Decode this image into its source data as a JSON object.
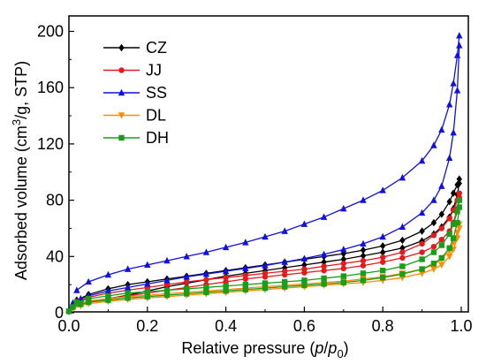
{
  "chart_data": {
    "type": "line",
    "xlabel": {
      "prefix": "Relative pressure (",
      "var1": "p",
      "slash": "/",
      "var2": "p",
      "sub": "0",
      "suffix": ")"
    },
    "ylabel": {
      "prefix": "Adsorbed volume (cm",
      "sup": "3",
      "suffix": "/g, STP)"
    },
    "xlim": [
      0.0,
      1.0
    ],
    "ylim": [
      0,
      210
    ],
    "xticks": [
      0.0,
      0.2,
      0.4,
      0.6,
      0.8,
      1.0
    ],
    "xtick_labels": [
      "0.0",
      "0.2",
      "0.4",
      "0.6",
      "0.8",
      "1.0"
    ],
    "yticks": [
      0,
      40,
      80,
      120,
      160,
      200
    ],
    "ytick_labels": [
      "0",
      "40",
      "80",
      "120",
      "160",
      "200"
    ],
    "grid": false,
    "legend_position": "top-left",
    "series": [
      {
        "name": "CZ",
        "color": "#000000",
        "marker": "diamond",
        "adsorption": [
          [
            0.0,
            1
          ],
          [
            0.01,
            4
          ],
          [
            0.03,
            6
          ],
          [
            0.05,
            7.5
          ],
          [
            0.1,
            10
          ],
          [
            0.15,
            12.5
          ],
          [
            0.2,
            15.5
          ],
          [
            0.25,
            18.5
          ],
          [
            0.3,
            21
          ],
          [
            0.35,
            23.5
          ],
          [
            0.4,
            26
          ],
          [
            0.45,
            28
          ],
          [
            0.5,
            30
          ],
          [
            0.55,
            32
          ],
          [
            0.6,
            34
          ],
          [
            0.65,
            36
          ],
          [
            0.7,
            38
          ],
          [
            0.75,
            40.5
          ],
          [
            0.8,
            43
          ],
          [
            0.85,
            46
          ],
          [
            0.9,
            51
          ],
          [
            0.93,
            56
          ],
          [
            0.95,
            61
          ],
          [
            0.97,
            68
          ],
          [
            0.98,
            74
          ],
          [
            0.99,
            84
          ],
          [
            0.995,
            92
          ]
        ],
        "desorption": [
          [
            0.995,
            95
          ],
          [
            0.99,
            91
          ],
          [
            0.98,
            85
          ],
          [
            0.97,
            79
          ],
          [
            0.95,
            70
          ],
          [
            0.93,
            64
          ],
          [
            0.9,
            58
          ],
          [
            0.85,
            51.5
          ],
          [
            0.8,
            47.5
          ],
          [
            0.75,
            44.5
          ],
          [
            0.7,
            42
          ],
          [
            0.65,
            40
          ],
          [
            0.6,
            38
          ],
          [
            0.55,
            36
          ],
          [
            0.5,
            34
          ],
          [
            0.45,
            32
          ],
          [
            0.4,
            30
          ],
          [
            0.35,
            28
          ],
          [
            0.3,
            26
          ],
          [
            0.25,
            24
          ],
          [
            0.2,
            22
          ],
          [
            0.15,
            20
          ],
          [
            0.1,
            17
          ],
          [
            0.05,
            13
          ],
          [
            0.02,
            9
          ]
        ]
      },
      {
        "name": "JJ",
        "color": "#e41a1c",
        "marker": "circle",
        "adsorption": [
          [
            0.0,
            1
          ],
          [
            0.01,
            4
          ],
          [
            0.03,
            6
          ],
          [
            0.05,
            7.5
          ],
          [
            0.1,
            10
          ],
          [
            0.15,
            12
          ],
          [
            0.2,
            14
          ],
          [
            0.25,
            16
          ],
          [
            0.3,
            18
          ],
          [
            0.35,
            20
          ],
          [
            0.4,
            22
          ],
          [
            0.45,
            24
          ],
          [
            0.5,
            25.5
          ],
          [
            0.55,
            27
          ],
          [
            0.6,
            28.5
          ],
          [
            0.65,
            30
          ],
          [
            0.7,
            31.5
          ],
          [
            0.75,
            33.5
          ],
          [
            0.8,
            36
          ],
          [
            0.85,
            39
          ],
          [
            0.9,
            43
          ],
          [
            0.93,
            47
          ],
          [
            0.95,
            52
          ],
          [
            0.97,
            58
          ],
          [
            0.98,
            64
          ],
          [
            0.99,
            74
          ],
          [
            0.995,
            82
          ]
        ],
        "desorption": [
          [
            0.995,
            85
          ],
          [
            0.99,
            80
          ],
          [
            0.98,
            73
          ],
          [
            0.97,
            67
          ],
          [
            0.95,
            60
          ],
          [
            0.93,
            55
          ],
          [
            0.9,
            49
          ],
          [
            0.85,
            43
          ],
          [
            0.8,
            39.5
          ],
          [
            0.75,
            37
          ],
          [
            0.7,
            35
          ],
          [
            0.65,
            33
          ],
          [
            0.6,
            31
          ],
          [
            0.55,
            29.5
          ],
          [
            0.5,
            28
          ],
          [
            0.45,
            26.5
          ],
          [
            0.4,
            25
          ],
          [
            0.35,
            23.5
          ],
          [
            0.3,
            22
          ],
          [
            0.25,
            20
          ],
          [
            0.2,
            18
          ],
          [
            0.15,
            16
          ],
          [
            0.1,
            14
          ],
          [
            0.05,
            11
          ],
          [
            0.02,
            8
          ]
        ]
      },
      {
        "name": "SS",
        "color": "#1010e0",
        "marker": "triangle-up",
        "adsorption": [
          [
            0.0,
            2
          ],
          [
            0.01,
            7
          ],
          [
            0.03,
            10
          ],
          [
            0.05,
            12
          ],
          [
            0.1,
            15.5
          ],
          [
            0.15,
            18
          ],
          [
            0.2,
            20.5
          ],
          [
            0.25,
            23
          ],
          [
            0.3,
            25.5
          ],
          [
            0.35,
            27.5
          ],
          [
            0.4,
            29.5
          ],
          [
            0.45,
            31.5
          ],
          [
            0.5,
            33.5
          ],
          [
            0.55,
            36
          ],
          [
            0.6,
            38.5
          ],
          [
            0.65,
            41.5
          ],
          [
            0.7,
            45
          ],
          [
            0.75,
            49
          ],
          [
            0.8,
            54
          ],
          [
            0.85,
            61
          ],
          [
            0.9,
            71
          ],
          [
            0.93,
            80
          ],
          [
            0.95,
            90
          ],
          [
            0.97,
            110
          ],
          [
            0.98,
            128
          ],
          [
            0.99,
            158
          ],
          [
            0.995,
            190
          ]
        ],
        "desorption": [
          [
            0.995,
            197
          ],
          [
            0.99,
            183
          ],
          [
            0.98,
            163
          ],
          [
            0.97,
            148
          ],
          [
            0.95,
            130
          ],
          [
            0.93,
            119
          ],
          [
            0.9,
            108
          ],
          [
            0.85,
            96
          ],
          [
            0.8,
            87
          ],
          [
            0.75,
            80
          ],
          [
            0.7,
            74
          ],
          [
            0.65,
            68
          ],
          [
            0.6,
            63
          ],
          [
            0.55,
            58
          ],
          [
            0.5,
            54
          ],
          [
            0.45,
            50
          ],
          [
            0.4,
            46.5
          ],
          [
            0.35,
            43
          ],
          [
            0.3,
            40
          ],
          [
            0.25,
            37
          ],
          [
            0.2,
            34
          ],
          [
            0.15,
            31
          ],
          [
            0.1,
            27
          ],
          [
            0.05,
            22
          ],
          [
            0.02,
            16
          ]
        ]
      },
      {
        "name": "DL",
        "color": "#ff8c00",
        "marker": "triangle-down",
        "adsorption": [
          [
            0.0,
            1
          ],
          [
            0.01,
            3
          ],
          [
            0.03,
            5
          ],
          [
            0.05,
            6.5
          ],
          [
            0.1,
            8
          ],
          [
            0.15,
            9.5
          ],
          [
            0.2,
            10.5
          ],
          [
            0.25,
            11.5
          ],
          [
            0.3,
            12.5
          ],
          [
            0.35,
            13.5
          ],
          [
            0.4,
            14.5
          ],
          [
            0.45,
            15.5
          ],
          [
            0.5,
            16.5
          ],
          [
            0.55,
            17.5
          ],
          [
            0.6,
            18.5
          ],
          [
            0.65,
            19.5
          ],
          [
            0.7,
            20.5
          ],
          [
            0.75,
            21.5
          ],
          [
            0.8,
            23
          ],
          [
            0.85,
            25
          ],
          [
            0.9,
            28
          ],
          [
            0.93,
            31
          ],
          [
            0.95,
            34
          ],
          [
            0.97,
            40
          ],
          [
            0.98,
            45
          ],
          [
            0.99,
            53
          ],
          [
            0.995,
            60
          ]
        ],
        "desorption": [
          [
            0.995,
            63
          ],
          [
            0.99,
            57
          ],
          [
            0.98,
            50
          ],
          [
            0.97,
            44
          ],
          [
            0.95,
            38
          ],
          [
            0.93,
            34
          ],
          [
            0.9,
            31
          ],
          [
            0.85,
            28
          ],
          [
            0.8,
            25.5
          ],
          [
            0.75,
            24
          ],
          [
            0.7,
            22.5
          ],
          [
            0.65,
            21.5
          ],
          [
            0.6,
            20.5
          ],
          [
            0.55,
            19.5
          ],
          [
            0.5,
            18.5
          ],
          [
            0.45,
            17.5
          ],
          [
            0.4,
            16.5
          ],
          [
            0.35,
            15.5
          ],
          [
            0.3,
            14.5
          ],
          [
            0.25,
            13.5
          ],
          [
            0.2,
            12.5
          ],
          [
            0.15,
            11.5
          ],
          [
            0.1,
            10
          ],
          [
            0.05,
            8.5
          ],
          [
            0.02,
            6.5
          ]
        ]
      },
      {
        "name": "DH",
        "color": "#1a9e1a",
        "marker": "square",
        "adsorption": [
          [
            0.0,
            1
          ],
          [
            0.01,
            4
          ],
          [
            0.03,
            6
          ],
          [
            0.05,
            7.5
          ],
          [
            0.1,
            9
          ],
          [
            0.15,
            10.5
          ],
          [
            0.2,
            11.5
          ],
          [
            0.25,
            12.5
          ],
          [
            0.3,
            13.5
          ],
          [
            0.35,
            14.5
          ],
          [
            0.4,
            15.5
          ],
          [
            0.45,
            16.5
          ],
          [
            0.5,
            17.5
          ],
          [
            0.55,
            18.5
          ],
          [
            0.6,
            19.5
          ],
          [
            0.65,
            20.5
          ],
          [
            0.7,
            21.5
          ],
          [
            0.75,
            23
          ],
          [
            0.8,
            25
          ],
          [
            0.85,
            27.5
          ],
          [
            0.9,
            31
          ],
          [
            0.93,
            35
          ],
          [
            0.95,
            39
          ],
          [
            0.97,
            46
          ],
          [
            0.98,
            53
          ],
          [
            0.99,
            64
          ],
          [
            0.995,
            75
          ]
        ],
        "desorption": [
          [
            0.995,
            80
          ],
          [
            0.99,
            72
          ],
          [
            0.98,
            63
          ],
          [
            0.97,
            56
          ],
          [
            0.95,
            48
          ],
          [
            0.93,
            43
          ],
          [
            0.9,
            38
          ],
          [
            0.85,
            33
          ],
          [
            0.8,
            30
          ],
          [
            0.75,
            28
          ],
          [
            0.7,
            26
          ],
          [
            0.65,
            24.5
          ],
          [
            0.6,
            23
          ],
          [
            0.55,
            22
          ],
          [
            0.5,
            21
          ],
          [
            0.45,
            20
          ],
          [
            0.4,
            19
          ],
          [
            0.35,
            18
          ],
          [
            0.3,
            17
          ],
          [
            0.25,
            16
          ],
          [
            0.2,
            15
          ],
          [
            0.15,
            14
          ],
          [
            0.1,
            12
          ],
          [
            0.05,
            10
          ],
          [
            0.02,
            7.5
          ]
        ]
      }
    ]
  }
}
